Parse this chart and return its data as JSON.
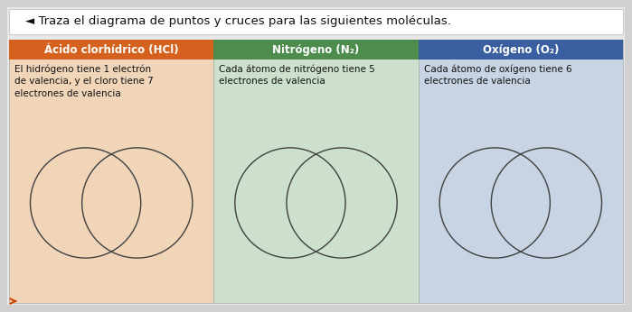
{
  "title": "◄ Traza el diagrama de puntos y cruces para las siguientes moléculas.",
  "title_fontsize": 9.5,
  "columns": [
    {
      "header": "Ácido clorhídrico (HCl)",
      "header_bg": "#d4621e",
      "header_color": "#ffffff",
      "body_bg": "#f0d5b8",
      "body_text": "El hidrógeno tiene 1 electrón\nde valencia, y el cloro tiene 7\nelectrones de valencia",
      "ellipse_color": "#404040"
    },
    {
      "header": "Nitrógeno (N₂)",
      "header_bg": "#4e8c4e",
      "header_color": "#ffffff",
      "body_bg": "#cde0cd",
      "body_text": "Cada átomo de nitrógeno tiene 5\nelectrones de valencia",
      "ellipse_color": "#404040"
    },
    {
      "header": "Oxígeno (O₂)",
      "header_bg": "#3a5fa0",
      "header_color": "#ffffff",
      "body_bg": "#c8d4e4",
      "body_text": "Cada átomo de oxígeno tiene 6\nelectrones de valencia",
      "ellipse_color": "#404040"
    }
  ],
  "outer_bg": "#d0d0d0",
  "inner_bg": "#e8e8e8",
  "header_fontsize": 8.5,
  "body_fontsize": 7.5,
  "top_strip_bg": "#ffffff",
  "top_strip_border": "#cccccc"
}
